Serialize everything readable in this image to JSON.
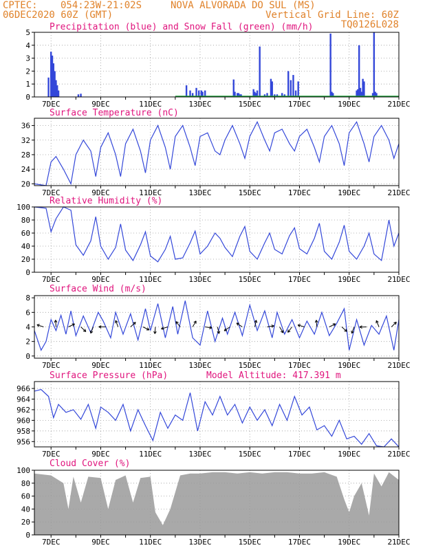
{
  "header": {
    "source": "CPTEC:",
    "coords": "054:23W-21:02S",
    "location": "NOVA ALVORADA DO SUL (MS)",
    "run": "06DEC2020 60Z (GMT)",
    "grid_note": "Vertical Grid Line: 60Z",
    "model_code": "TQ0126L028"
  },
  "colors": {
    "header": "#e0822a",
    "title": "#e0147d",
    "line": "#3347d9",
    "snow": "#1fa33a",
    "cloud": "#a9a9a9"
  },
  "x_ticks": [
    "7DEC",
    "9DEC",
    "11DEC",
    "13DEC",
    "15DEC",
    "17DEC",
    "19DEC",
    "21DEC"
  ],
  "chart_data": [
    {
      "type": "bar",
      "title": "Precipitation (blue) and Snow Fall (green) (mm/h)",
      "ylim": [
        0,
        5
      ],
      "yticks": [
        "0",
        "1",
        "2",
        "3",
        "4",
        "5"
      ],
      "x_range_days": [
        6.33,
        21
      ],
      "series": [
        {
          "name": "Precipitation",
          "x": [
            6.9,
            7.0,
            7.05,
            7.1,
            7.15,
            7.2,
            7.25,
            7.3,
            8.1,
            8.2,
            12.45,
            12.6,
            12.7,
            12.85,
            12.95,
            13.05,
            13.1,
            13.2,
            14.35,
            14.4,
            14.5,
            14.55,
            14.6,
            14.65,
            15.15,
            15.2,
            15.25,
            15.3,
            15.4,
            15.6,
            15.7,
            15.85,
            15.9,
            16.0,
            16.1,
            16.3,
            16.4,
            16.55,
            16.65,
            16.75,
            16.85,
            16.95,
            18.25,
            18.3,
            18.35,
            19.3,
            19.35,
            19.4,
            19.45,
            19.5,
            19.55,
            19.6,
            19.95,
            20.0,
            20.05,
            20.1
          ],
          "values": [
            1.5,
            3.5,
            3.2,
            2.6,
            2.0,
            1.3,
            0.9,
            0.5,
            0.2,
            0.25,
            0.9,
            0.5,
            0.3,
            0.7,
            0.5,
            0.5,
            0.4,
            0.5,
            1.35,
            0.4,
            0.3,
            0.3,
            0.2,
            0.2,
            0.6,
            0.4,
            0.3,
            0.5,
            3.9,
            0.2,
            0.3,
            1.4,
            1.2,
            0.2,
            0.2,
            0.3,
            0.2,
            2.0,
            1.3,
            1.7,
            0.5,
            1.2,
            4.9,
            0.4,
            0.3,
            0.5,
            0.6,
            4.0,
            0.7,
            0.4,
            1.4,
            1.2,
            0.3,
            5.0,
            0.4,
            0.3
          ]
        },
        {
          "name": "Snow Fall",
          "x": [],
          "values": []
        }
      ]
    },
    {
      "type": "line",
      "title": "Surface Temperature (nC)",
      "ylim": [
        19.5,
        38
      ],
      "yticks": [
        "20",
        "24",
        "28",
        "32",
        "36"
      ],
      "x": [
        6.33,
        6.8,
        7.0,
        7.2,
        7.5,
        7.8,
        8.0,
        8.3,
        8.6,
        8.8,
        9.0,
        9.3,
        9.6,
        9.8,
        10.0,
        10.3,
        10.6,
        10.8,
        11.0,
        11.3,
        11.6,
        11.8,
        12.0,
        12.3,
        12.6,
        12.8,
        13.0,
        13.3,
        13.6,
        13.8,
        14.0,
        14.3,
        14.6,
        14.8,
        15.0,
        15.3,
        15.6,
        15.8,
        16.0,
        16.3,
        16.6,
        16.8,
        17.0,
        17.3,
        17.6,
        17.8,
        18.0,
        18.3,
        18.6,
        18.8,
        19.0,
        19.3,
        19.6,
        19.8,
        20.0,
        20.3,
        20.6,
        20.8,
        21.0
      ],
      "values": [
        20,
        19.5,
        26,
        27.5,
        24,
        20,
        28,
        32,
        29,
        22,
        30,
        34,
        28,
        22,
        31,
        35,
        29,
        23,
        32,
        36,
        30,
        24,
        33,
        36,
        30,
        25,
        33,
        34,
        29,
        28,
        32,
        36,
        31,
        27,
        33,
        37,
        32,
        29,
        34,
        35,
        31,
        29,
        33,
        35,
        30,
        26,
        33,
        36,
        31,
        25,
        34,
        37,
        31,
        26,
        33,
        36,
        32,
        27,
        31
      ]
    },
    {
      "type": "line",
      "title": "Relative Humidity (%)",
      "ylim": [
        0,
        100
      ],
      "yticks": [
        "0",
        "20",
        "40",
        "60",
        "80",
        "100"
      ],
      "x": [
        6.33,
        6.8,
        7.0,
        7.2,
        7.5,
        7.8,
        8.0,
        8.3,
        8.6,
        8.8,
        9.0,
        9.3,
        9.6,
        9.8,
        10.0,
        10.3,
        10.6,
        10.8,
        11.0,
        11.3,
        11.6,
        11.8,
        12.0,
        12.3,
        12.6,
        12.8,
        13.0,
        13.3,
        13.6,
        13.8,
        14.0,
        14.3,
        14.6,
        14.8,
        15.0,
        15.3,
        15.6,
        15.8,
        16.0,
        16.3,
        16.6,
        16.8,
        17.0,
        17.3,
        17.6,
        17.8,
        18.0,
        18.3,
        18.6,
        18.8,
        19.0,
        19.3,
        19.6,
        19.8,
        20.0,
        20.3,
        20.6,
        20.8,
        21.0
      ],
      "values": [
        100,
        98,
        62,
        82,
        100,
        95,
        42,
        26,
        48,
        85,
        40,
        20,
        38,
        74,
        34,
        18,
        42,
        62,
        25,
        16,
        35,
        55,
        20,
        22,
        45,
        63,
        28,
        40,
        60,
        52,
        38,
        24,
        55,
        70,
        32,
        20,
        45,
        60,
        35,
        28,
        56,
        68,
        36,
        28,
        52,
        75,
        32,
        20,
        46,
        72,
        32,
        20,
        40,
        60,
        28,
        18,
        80,
        40,
        60
      ]
    },
    {
      "type": "line",
      "title": "Surface Wind (m/s)",
      "ylim": [
        -0.3,
        8.3
      ],
      "yticks": [
        "0",
        "2",
        "4",
        "6",
        "8"
      ],
      "x": [
        6.33,
        6.6,
        6.8,
        7.0,
        7.2,
        7.4,
        7.6,
        7.8,
        8.0,
        8.3,
        8.6,
        8.9,
        9.1,
        9.4,
        9.6,
        9.9,
        10.2,
        10.5,
        10.8,
        11.0,
        11.3,
        11.6,
        11.9,
        12.1,
        12.4,
        12.7,
        13.0,
        13.3,
        13.6,
        13.9,
        14.1,
        14.4,
        14.7,
        15.0,
        15.3,
        15.6,
        15.9,
        16.1,
        16.4,
        16.7,
        17.0,
        17.3,
        17.6,
        17.9,
        18.2,
        18.5,
        18.8,
        19.0,
        19.3,
        19.6,
        19.9,
        20.2,
        20.5,
        20.8,
        21.0
      ],
      "values": [
        3.5,
        0.8,
        2.0,
        5.0,
        3.5,
        5.6,
        3.0,
        6.2,
        2.8,
        5.5,
        3.2,
        6.0,
        4.8,
        2.5,
        6.0,
        3.0,
        5.8,
        2.2,
        6.5,
        3.5,
        7.2,
        2.5,
        6.8,
        3.0,
        7.6,
        2.5,
        1.5,
        6.2,
        2.0,
        5.2,
        3.0,
        6.0,
        2.8,
        7.0,
        3.5,
        6.2,
        2.5,
        6.0,
        3.0,
        5.0,
        2.5,
        4.8,
        3.0,
        6.0,
        2.8,
        4.5,
        6.5,
        0.8,
        5.0,
        1.5,
        4.2,
        3.0,
        5.5,
        0.8,
        5.0
      ]
    },
    {
      "type": "line",
      "title": "Surface Pressure (hPa)",
      "annotation": "Model Altitude: 417.391 m",
      "ylim": [
        955,
        967.3
      ],
      "yticks": [
        "956",
        "958",
        "960",
        "962",
        "964",
        "966"
      ],
      "x": [
        6.33,
        6.6,
        6.9,
        7.1,
        7.3,
        7.6,
        7.9,
        8.2,
        8.5,
        8.8,
        9.0,
        9.3,
        9.6,
        9.9,
        10.2,
        10.5,
        10.8,
        11.1,
        11.4,
        11.7,
        12.0,
        12.3,
        12.6,
        12.9,
        13.2,
        13.5,
        13.8,
        14.1,
        14.4,
        14.7,
        15.0,
        15.3,
        15.6,
        15.9,
        16.2,
        16.5,
        16.8,
        17.1,
        17.4,
        17.7,
        18.0,
        18.3,
        18.6,
        18.9,
        19.2,
        19.5,
        19.8,
        20.1,
        20.4,
        20.7,
        21.0
      ],
      "values": [
        965.5,
        965.8,
        964.5,
        960.5,
        963.0,
        961.5,
        962.0,
        960.2,
        963.0,
        958.5,
        962.5,
        961.5,
        960.0,
        963.0,
        958.0,
        962.0,
        959.0,
        956.2,
        961.5,
        958.5,
        961.0,
        960.0,
        965.2,
        958.0,
        963.5,
        961.0,
        964.5,
        961.0,
        963.0,
        959.5,
        962.5,
        960.0,
        962.0,
        959.0,
        963.0,
        960.0,
        964.5,
        961.0,
        962.5,
        958.2,
        959.0,
        957.0,
        960.0,
        956.5,
        957.0,
        955.5,
        957.5,
        955.2,
        955.0,
        956.5,
        955.0
      ]
    },
    {
      "type": "area",
      "title": "Cloud Cover (%)",
      "ylim": [
        0,
        100
      ],
      "yticks": [
        "0",
        "20",
        "40",
        "60",
        "80",
        "100"
      ],
      "x": [
        6.33,
        7.0,
        7.5,
        7.7,
        7.9,
        8.2,
        8.5,
        9.0,
        9.3,
        9.6,
        10.0,
        10.3,
        10.6,
        11.0,
        11.2,
        11.5,
        11.8,
        12.2,
        12.6,
        13.0,
        13.5,
        14.0,
        14.5,
        15.0,
        15.5,
        16.0,
        16.5,
        17.0,
        17.5,
        18.0,
        18.5,
        18.8,
        19.0,
        19.2,
        19.5,
        19.8,
        20.0,
        20.3,
        20.6,
        21.0
      ],
      "values": [
        95,
        92,
        80,
        40,
        90,
        50,
        90,
        88,
        40,
        85,
        92,
        50,
        88,
        90,
        35,
        15,
        40,
        92,
        95,
        95,
        97,
        97,
        95,
        97,
        95,
        97,
        97,
        95,
        95,
        97,
        90,
        55,
        35,
        60,
        80,
        30,
        95,
        75,
        97,
        85
      ]
    }
  ]
}
